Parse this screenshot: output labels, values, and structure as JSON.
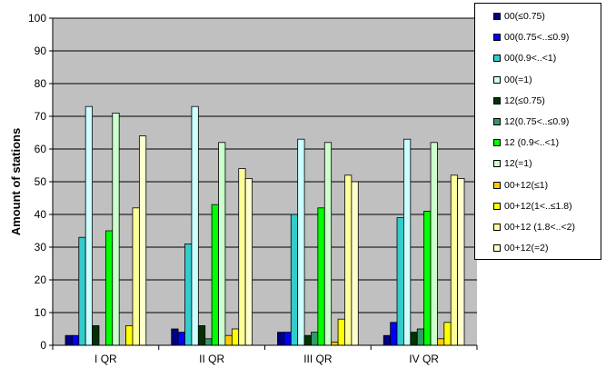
{
  "chart_data": {
    "type": "bar",
    "title": "",
    "xlabel": "",
    "ylabel": "Amount of stations",
    "ylim": [
      0,
      100
    ],
    "yticks": [
      0,
      10,
      20,
      30,
      40,
      50,
      60,
      70,
      80,
      90,
      100
    ],
    "grid": true,
    "plot_background": "#C0C0C0",
    "legend_position": "right",
    "categories": [
      "I QR",
      "II QR",
      "III QR",
      "IV QR"
    ],
    "series": [
      {
        "name": "00(≤0.75)",
        "color": "#000080",
        "values": [
          3,
          5,
          4,
          3
        ]
      },
      {
        "name": "00(0.75<..≤0.9)",
        "color": "#0000FF",
        "values": [
          3,
          4,
          4,
          7
        ]
      },
      {
        "name": "00(0.9<..<1)",
        "color": "#33CCCC",
        "values": [
          33,
          31,
          40,
          39
        ]
      },
      {
        "name": "00(=1)",
        "color": "#CCFFFF",
        "values": [
          73,
          73,
          63,
          63
        ]
      },
      {
        "name": "12(≤0.75)",
        "color": "#003300",
        "values": [
          6,
          6,
          3,
          4
        ]
      },
      {
        "name": "12(0.75<..≤0.9)",
        "color": "#339966",
        "values": [
          0,
          2,
          4,
          5
        ]
      },
      {
        "name": "12 (0.9<..<1)",
        "color": "#00FF00",
        "values": [
          35,
          43,
          42,
          41
        ]
      },
      {
        "name": "12(=1)",
        "color": "#CCFFCC",
        "values": [
          71,
          62,
          62,
          62
        ]
      },
      {
        "name": "00+12(≤1)",
        "color": "#FFCC00",
        "values": [
          0,
          3,
          1,
          2
        ]
      },
      {
        "name": "00+12(1<..≤1.8)",
        "color": "#FFFF00",
        "values": [
          6,
          5,
          8,
          7
        ]
      },
      {
        "name": "00+12 (1.8<..<2)",
        "color": "#FFFF99",
        "values": [
          42,
          54,
          52,
          52
        ]
      },
      {
        "name": "00+12(=2)",
        "color": "#FFFFCC",
        "values": [
          64,
          51,
          50,
          51
        ]
      }
    ]
  }
}
